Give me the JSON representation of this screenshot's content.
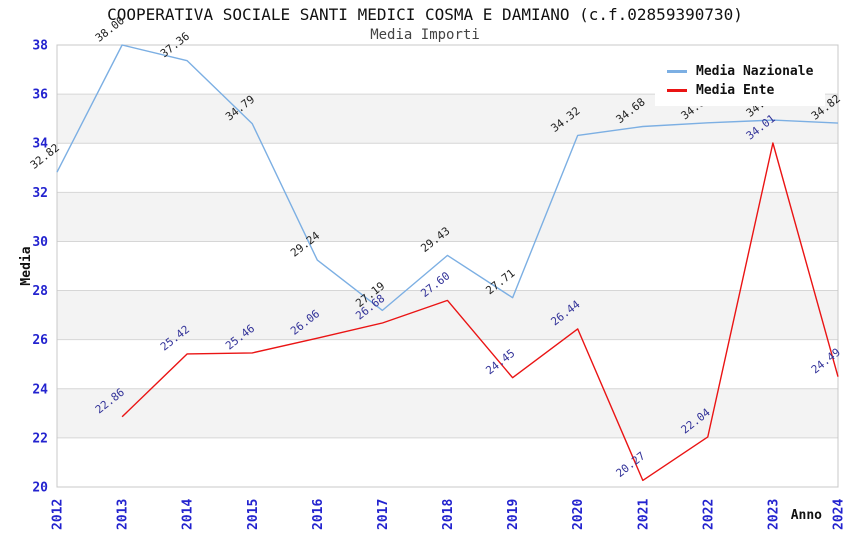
{
  "chart_data": {
    "type": "line",
    "title": "COOPERATIVA SOCIALE SANTI MEDICI COSMA E DAMIANO (c.f.02859390730)",
    "subtitle": "Media Importi",
    "xlabel": "Anno",
    "ylabel": "Media",
    "ylim": [
      20,
      38
    ],
    "y_ticks": [
      38,
      36,
      34,
      32,
      30,
      28,
      26,
      24,
      22,
      20
    ],
    "categories": [
      2012,
      2013,
      2014,
      2015,
      2016,
      2017,
      2018,
      2019,
      2020,
      2021,
      2022,
      2023,
      2024
    ],
    "series": [
      {
        "name": "Media Nazionale",
        "color": "#7cafe3",
        "label_color": "#222222",
        "values": [
          32.82,
          38.0,
          37.36,
          34.79,
          29.24,
          27.19,
          29.43,
          27.71,
          34.32,
          34.68,
          34.83,
          34.94,
          34.82
        ]
      },
      {
        "name": "Media Ente",
        "color": "#ea1414",
        "label_color": "#333399",
        "values": [
          null,
          22.86,
          25.42,
          25.46,
          26.06,
          26.68,
          27.6,
          24.45,
          26.44,
          20.27,
          22.04,
          34.01,
          24.49
        ]
      }
    ],
    "legend_position": "top-right",
    "grid": "horizontal",
    "band_colors": [
      "#ffffff",
      "#f3f3f3"
    ],
    "gridline_color": "#d6d6d6",
    "tick_label_color": "#2323cf",
    "axis_title_color": "#111111"
  }
}
